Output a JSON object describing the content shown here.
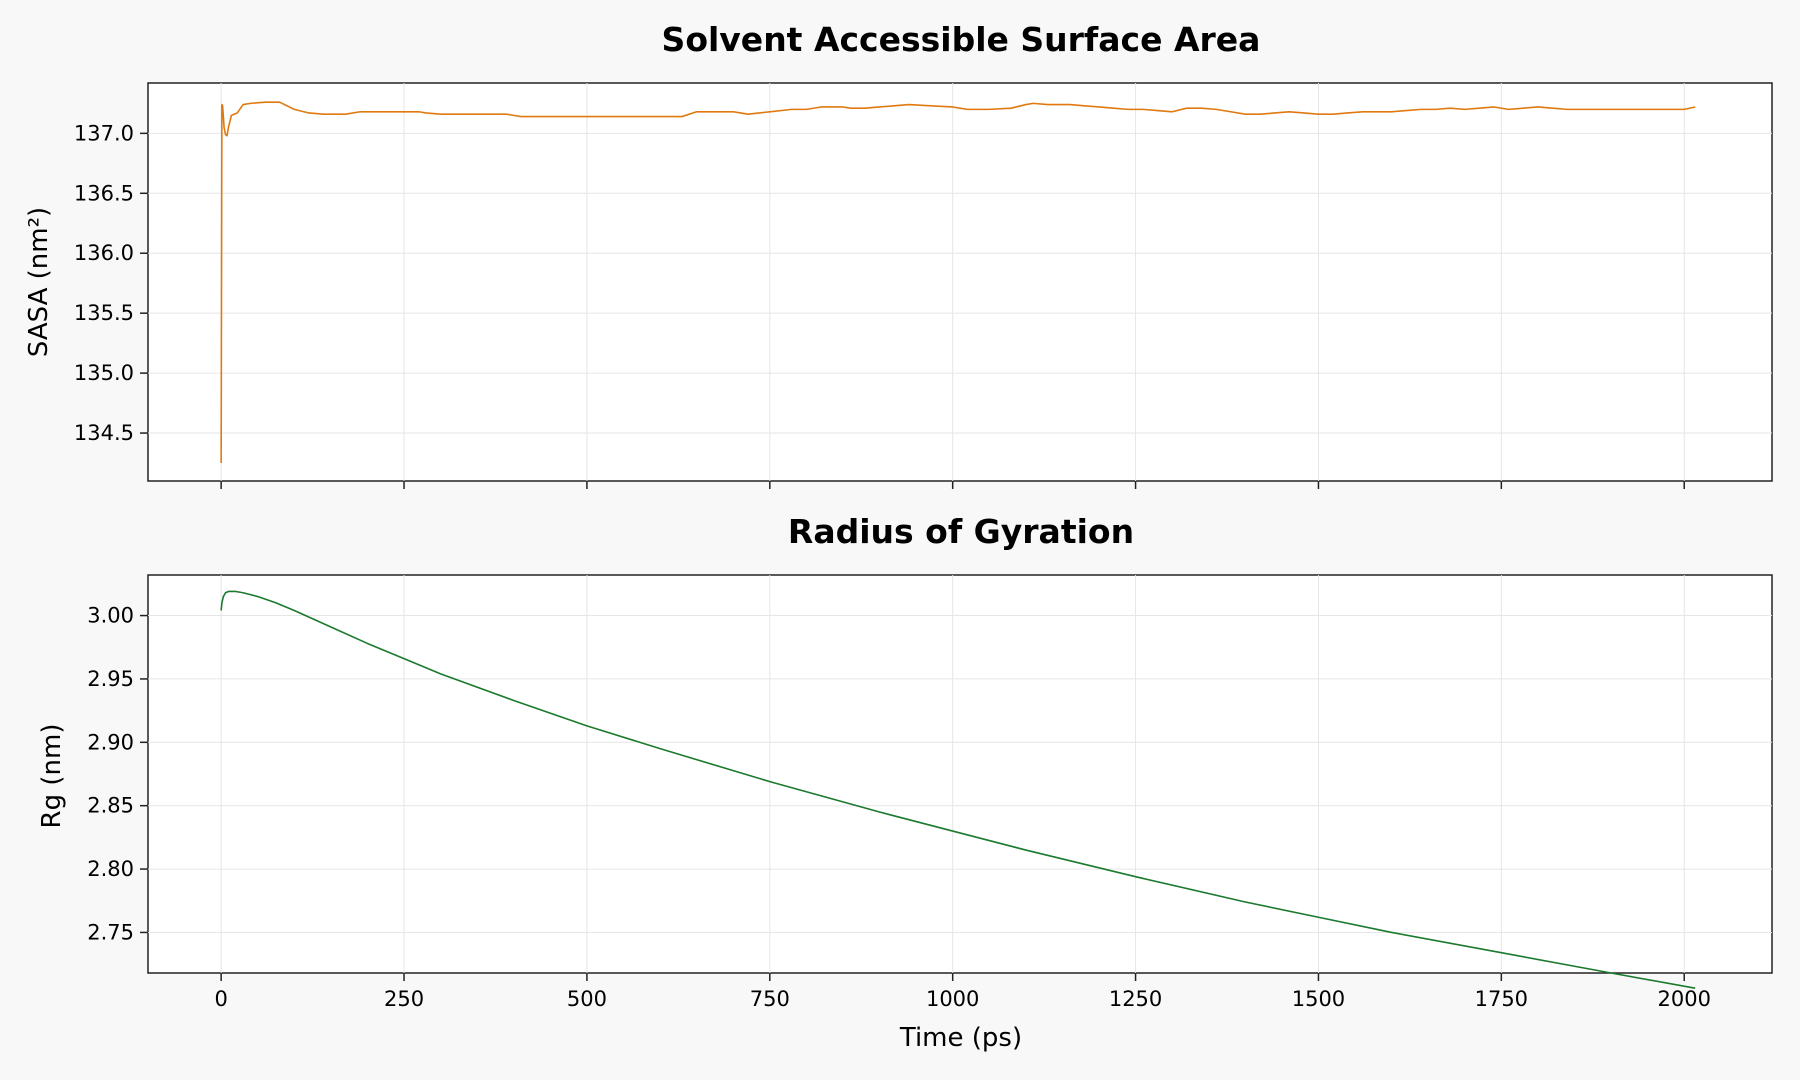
{
  "chart_data": [
    {
      "type": "line",
      "title": "Solvent Accessible Surface Area",
      "xlabel": "",
      "ylabel": "SASA (nm²)",
      "xlim": [
        -100,
        2120
      ],
      "ylim": [
        134.1,
        137.42
      ],
      "xticks": [
        0,
        250,
        500,
        750,
        1000,
        1250,
        1500,
        1750,
        2000
      ],
      "xtick_labels_visible": false,
      "yticks": [
        134.5,
        135.0,
        135.5,
        136.0,
        136.5,
        137.0
      ],
      "ytick_labels": [
        "134.5",
        "135.0",
        "135.5",
        "136.0",
        "136.5",
        "137.0"
      ],
      "grid": true,
      "color": "#e07a10",
      "series": [
        {
          "x": [
            0,
            1,
            2,
            4,
            6,
            8,
            10,
            14,
            18,
            22,
            30,
            40,
            60,
            80,
            100,
            120,
            140,
            170,
            190,
            210,
            240,
            270,
            280,
            300,
            330,
            360,
            390,
            400,
            410,
            440,
            470,
            500,
            530,
            560,
            600,
            630,
            650,
            700,
            710,
            720,
            750,
            780,
            800,
            820,
            850,
            860,
            880,
            900,
            920,
            940,
            970,
            1000,
            1010,
            1020,
            1050,
            1080,
            1100,
            1110,
            1130,
            1160,
            1180,
            1200,
            1220,
            1240,
            1260,
            1280,
            1300,
            1320,
            1340,
            1360,
            1380,
            1400,
            1420,
            1440,
            1460,
            1480,
            1500,
            1520,
            1540,
            1560,
            1580,
            1600,
            1620,
            1640,
            1660,
            1680,
            1700,
            1720,
            1740,
            1760,
            1780,
            1800,
            1820,
            1840,
            1860,
            1880,
            1900,
            1920,
            1940,
            1960,
            1980,
            2000,
            2015
          ],
          "y": [
            134.25,
            137.24,
            137.23,
            137.05,
            136.99,
            136.98,
            137.05,
            137.15,
            137.16,
            137.17,
            137.24,
            137.25,
            137.26,
            137.26,
            137.2,
            137.17,
            137.16,
            137.16,
            137.18,
            137.18,
            137.18,
            137.18,
            137.17,
            137.16,
            137.16,
            137.16,
            137.16,
            137.15,
            137.14,
            137.14,
            137.14,
            137.14,
            137.14,
            137.14,
            137.14,
            137.14,
            137.18,
            137.18,
            137.17,
            137.16,
            137.18,
            137.2,
            137.2,
            137.22,
            137.22,
            137.21,
            137.21,
            137.22,
            137.23,
            137.24,
            137.23,
            137.22,
            137.21,
            137.2,
            137.2,
            137.21,
            137.24,
            137.25,
            137.24,
            137.24,
            137.23,
            137.22,
            137.21,
            137.2,
            137.2,
            137.19,
            137.18,
            137.21,
            137.21,
            137.2,
            137.18,
            137.16,
            137.16,
            137.17,
            137.18,
            137.17,
            137.16,
            137.16,
            137.17,
            137.18,
            137.18,
            137.18,
            137.19,
            137.2,
            137.2,
            137.21,
            137.2,
            137.21,
            137.22,
            137.2,
            137.21,
            137.22,
            137.21,
            137.2,
            137.2,
            137.2,
            137.2,
            137.2,
            137.2,
            137.2,
            137.2,
            137.2,
            137.22
          ]
        }
      ]
    },
    {
      "type": "line",
      "title": "Radius of Gyration",
      "xlabel": "Time (ps)",
      "ylabel": "Rg (nm)",
      "xlim": [
        -100,
        2120
      ],
      "ylim": [
        2.718,
        3.032
      ],
      "xticks": [
        0,
        250,
        500,
        750,
        1000,
        1250,
        1500,
        1750,
        2000
      ],
      "xtick_labels": [
        "0",
        "250",
        "500",
        "750",
        "1000",
        "1250",
        "1500",
        "1750",
        "2000"
      ],
      "yticks": [
        2.75,
        2.8,
        2.85,
        2.9,
        2.95,
        3.0
      ],
      "ytick_labels": [
        "2.75",
        "2.80",
        "2.85",
        "2.90",
        "2.95",
        "3.00"
      ],
      "grid": true,
      "color": "#1b7a2e",
      "series": [
        {
          "x": [
            0,
            1,
            3,
            6,
            10,
            15,
            20,
            30,
            50,
            75,
            100,
            150,
            200,
            250,
            300,
            400,
            500,
            600,
            750,
            900,
            1000,
            1100,
            1250,
            1400,
            1500,
            1600,
            1750,
            1900,
            2015
          ],
          "y": [
            3.004,
            3.01,
            3.015,
            3.018,
            3.019,
            3.019,
            3.019,
            3.018,
            3.015,
            3.01,
            3.004,
            2.991,
            2.978,
            2.966,
            2.954,
            2.933,
            2.913,
            2.895,
            2.869,
            2.845,
            2.83,
            2.815,
            2.794,
            2.774,
            2.762,
            2.75,
            2.734,
            2.718,
            2.706
          ]
        }
      ]
    }
  ]
}
